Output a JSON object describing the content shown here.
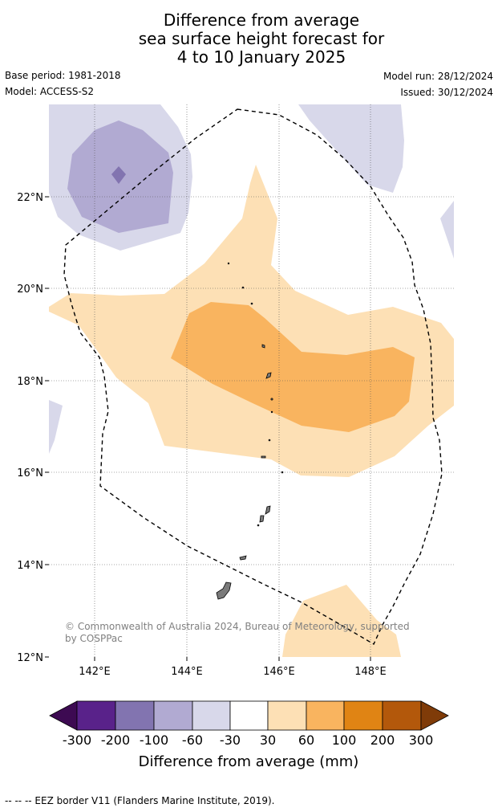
{
  "title": {
    "line1": "Difference from average",
    "line2": "sea surface height forecast for",
    "line3": "4 to 10 January 2025"
  },
  "meta": {
    "base_period": "Base period: 1981-2018",
    "model": "Model: ACCESS-S2",
    "model_run": "Model run: 28/12/2024",
    "issued": "Issued: 30/12/2024"
  },
  "map": {
    "lon_labels": [
      "142°E",
      "144°E",
      "146°E",
      "148°E"
    ],
    "lat_labels": [
      "22°N",
      "20°N",
      "18°N",
      "16°N",
      "14°N",
      "12°N"
    ],
    "copyright_line1": "© Commonwealth of Australia 2024, Bureau of Meteorology, supported",
    "copyright_line2": "by COSPPac"
  },
  "colorbar": {
    "ticks": [
      "-300",
      "-200",
      "-100",
      "-60",
      "-30",
      "30",
      "60",
      "100",
      "200",
      "300"
    ],
    "label": "Difference from average (mm)",
    "colors": {
      "below_-300": "#3d0a52",
      "-300_-200": "#59228a",
      "-200_-100": "#8274b0",
      "-100_-60": "#b1aad2",
      "-60_-30": "#d8d8ea",
      "-30_30": "#ffffff",
      "30_60": "#fde0b5",
      "60_100": "#f9b45f",
      "100_200": "#e08414",
      "200_300": "#b3580b",
      "above_300": "#7f3b08"
    }
  },
  "footnote": "--  --  -- EEZ border V11 (Flanders Marine Institute, 2019)."
}
